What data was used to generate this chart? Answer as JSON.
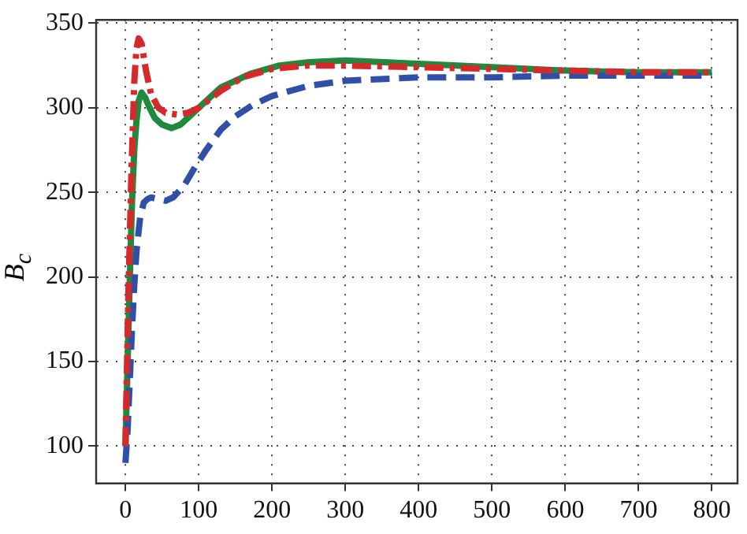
{
  "chart_data": {
    "type": "line",
    "ylabel": "B$_{c}$",
    "xlim": [
      -40,
      835
    ],
    "ylim": [
      78,
      352
    ],
    "xticks": [
      0,
      100,
      200,
      300,
      400,
      500,
      600,
      700,
      800
    ],
    "yticks": [
      100,
      150,
      200,
      250,
      300,
      350
    ],
    "grid": true,
    "legend": false,
    "marker": "none",
    "series": [
      {
        "color": "#d62a2a",
        "line_style": "dashdot",
        "x": [
          0,
          4,
          8,
          12,
          15,
          18,
          22,
          28,
          35,
          45,
          55,
          70,
          85,
          100,
          130,
          160,
          200,
          250,
          300,
          400,
          500,
          600,
          700,
          800
        ],
        "values": [
          100,
          190,
          260,
          315,
          335,
          341,
          338,
          322,
          308,
          300,
          297,
          296,
          297,
          300,
          310,
          318,
          323,
          325,
          325,
          324,
          323,
          322,
          321,
          321
        ]
      },
      {
        "color": "#3050a8",
        "line_style": "dashed",
        "x": [
          0,
          3,
          6,
          9,
          12,
          15,
          20,
          25,
          30,
          35,
          45,
          55,
          65,
          80,
          95,
          110,
          130,
          150,
          175,
          200,
          250,
          300,
          400,
          500,
          600,
          700,
          800
        ],
        "values": [
          90,
          110,
          140,
          170,
          195,
          215,
          235,
          244,
          246,
          247,
          246,
          245,
          247,
          254,
          265,
          275,
          287,
          295,
          302,
          307,
          313,
          316,
          318,
          318,
          319,
          319,
          319
        ]
      },
      {
        "color": "#1e8a3e",
        "line_style": "solid",
        "x": [
          0,
          3,
          6,
          9,
          12,
          15,
          18,
          22,
          27,
          33,
          40,
          50,
          63,
          75,
          90,
          100,
          130,
          170,
          210,
          250,
          300,
          400,
          500,
          600,
          700,
          800
        ],
        "values": [
          100,
          150,
          200,
          245,
          275,
          292,
          304,
          309,
          306,
          300,
          294,
          290,
          288,
          290,
          296,
          300,
          312,
          320,
          325,
          327,
          328,
          326,
          324,
          322,
          321,
          321
        ]
      }
    ]
  }
}
